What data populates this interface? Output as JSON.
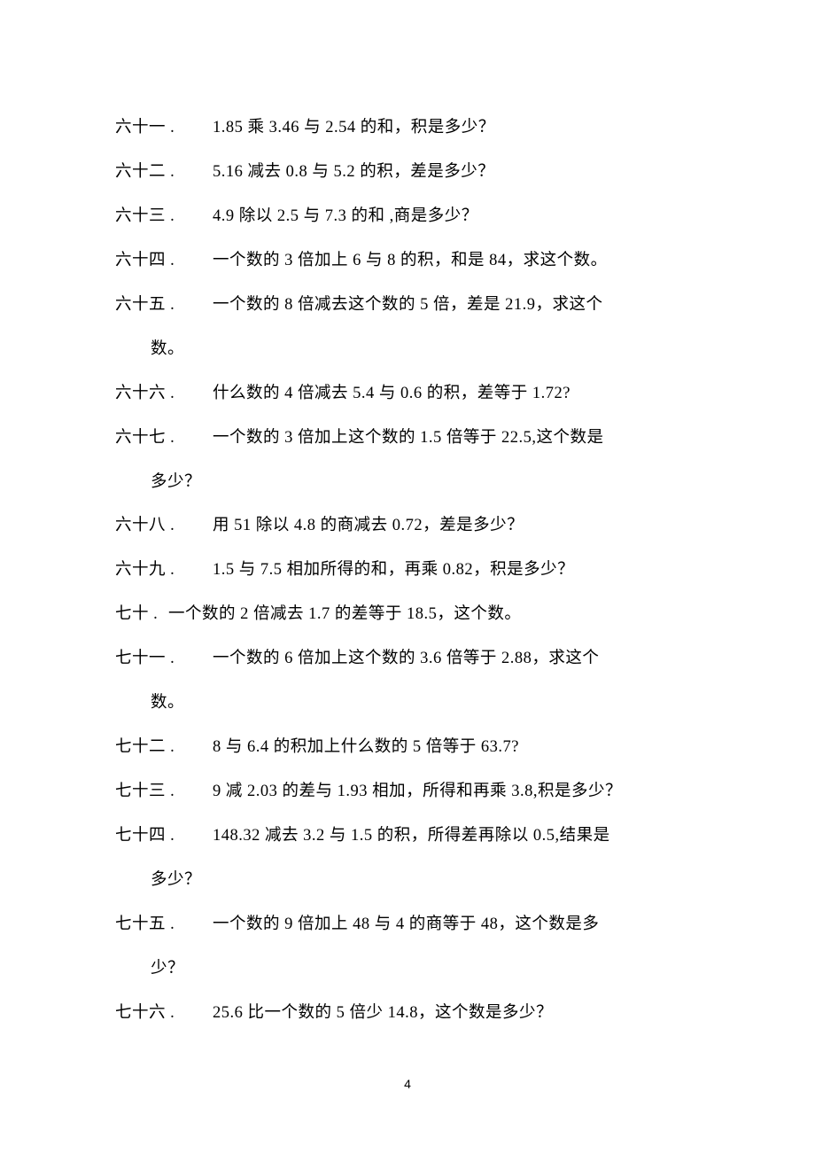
{
  "page_number": "4",
  "text_color": "#000000",
  "background_color": "#ffffff",
  "font_size_pt": 14,
  "line_height": 2.7,
  "items": [
    {
      "n": "六十一 .",
      "t": "1.85 乘 3.46 与 2.54 的和，积是多少？",
      "c": null,
      "short": false
    },
    {
      "n": "六十二 .",
      "t": "5.16 减去 0.8 与 5.2 的积，差是多少？",
      "c": null,
      "short": false
    },
    {
      "n": "六十三 .",
      "t": "4.9 除以 2.5 与 7.3 的和 ,商是多少？",
      "c": null,
      "short": false
    },
    {
      "n": "六十四 .",
      "t": "一个数的  3 倍加上  6 与 8 的积，和是  84，求这个数。",
      "c": null,
      "short": false
    },
    {
      "n": "六十五 .",
      "t": "一个数的  8 倍减去这个数的   5 倍，差是  21.9，求这个",
      "c": "数。",
      "short": false
    },
    {
      "n": "六十六 .",
      "t": "什么数的  4 倍减去  5.4 与 0.6 的积，差等于  1.72?",
      "c": null,
      "short": false
    },
    {
      "n": "六十七 .",
      "t": "一个数的  3 倍加上这个数的   1.5 倍等于 22.5,这个数是",
      "c": "多少？",
      "short": false
    },
    {
      "n": "六十八 .",
      "t": "用 51 除以 4.8 的商减去  0.72，差是多少？",
      "c": null,
      "short": false
    },
    {
      "n": "六十九 .",
      "t": "  1.5 与 7.5 相加所得的和，再乘   0.82，积是多少？",
      "c": null,
      "short": false
    },
    {
      "n": "七十 .",
      "t": "一个数的  2 倍减去  1.7 的差等于  18.5，这个数。",
      "c": null,
      "short": true
    },
    {
      "n": "七十一 .",
      "t": "一个数的  6 倍加上这个数的   3.6 倍等于  2.88，求这个",
      "c": "数。",
      "short": false
    },
    {
      "n": "七十二 .",
      "t": "8 与  6.4 的积加上什么数的   5 倍等于 63.7?",
      "c": null,
      "short": false
    },
    {
      "n": "七十三 .",
      "t": "9 减 2.03 的差与 1.93 相加，所得和再乘  3.8,积是多少？",
      "c": null,
      "short": false
    },
    {
      "n": "七十四 .",
      "t": "148.32 减去 3.2 与 1.5 的积，所得差再除以   0.5,结果是",
      "c": "多少？",
      "short": false
    },
    {
      "n": "七十五 .",
      "t": "一个数的  9 倍加上  48 与 4 的商等于  48，这个数是多",
      "c": "少？",
      "short": false
    },
    {
      "n": "七十六 .",
      "t": "25.6 比一个数的  5 倍少 14.8，这个数是多少？",
      "c": null,
      "short": false
    }
  ]
}
